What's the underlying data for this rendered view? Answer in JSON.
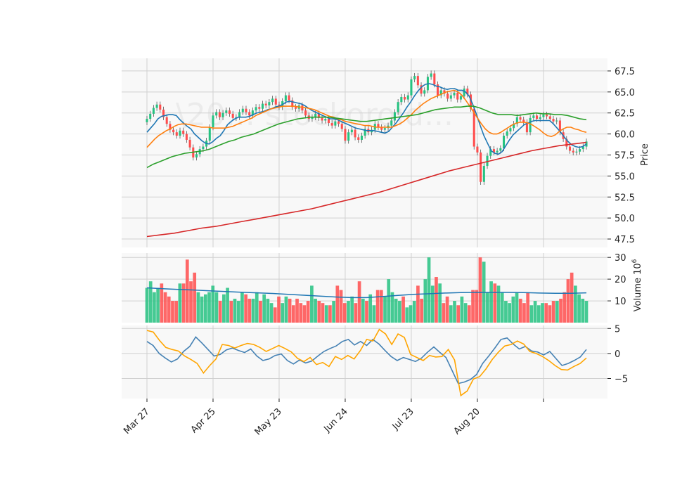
{
  "chart_data": [
    {
      "type": "candlestick",
      "panel": "price",
      "ylabel": "Price",
      "ylim": [
        46.5,
        69.0
      ],
      "yticks": [
        47.5,
        50.0,
        52.5,
        55.0,
        57.5,
        60.0,
        62.5,
        65.0,
        67.5
      ],
      "ytick_labels": [
        "47.5",
        "50.0",
        "52.5",
        "55.0",
        "57.5",
        "60.0",
        "62.5",
        "65.0",
        "67.5"
      ],
      "grid": true,
      "watermark": "\\20... stockoroid...",
      "up_color": "#26c281",
      "down_color": "#ff4d4d",
      "close": [
        61.8,
        62.4,
        63.1,
        63.5,
        62.9,
        62.0,
        61.2,
        60.5,
        60.2,
        59.8,
        60.4,
        60.0,
        59.3,
        58.4,
        57.2,
        57.6,
        58.2,
        58.5,
        59.2,
        60.8,
        62.2,
        62.6,
        62.0,
        62.5,
        62.8,
        62.4,
        61.9,
        62.0,
        62.6,
        63.0,
        62.6,
        62.2,
        62.8,
        63.2,
        63.0,
        63.6,
        63.4,
        63.8,
        64.2,
        63.5,
        63.2,
        63.9,
        64.6,
        64.0,
        63.2,
        63.0,
        63.4,
        62.8,
        62.2,
        61.8,
        62.0,
        62.4,
        61.9,
        61.6,
        61.8,
        61.3,
        61.0,
        61.5,
        61.2,
        60.6,
        59.2,
        60.2,
        60.5,
        59.6,
        59.3,
        59.8,
        60.6,
        60.2,
        60.5,
        61.2,
        60.8,
        60.5,
        60.7,
        61.0,
        61.6,
        62.6,
        63.8,
        64.4,
        64.1,
        64.6,
        66.5,
        66.9,
        65.8,
        64.8,
        65.2,
        66.8,
        67.2,
        65.9,
        64.6,
        65.2,
        64.8,
        64.2,
        64.6,
        64.9,
        64.1,
        64.5,
        65.4,
        64.7,
        63.0,
        58.5,
        57.8,
        54.3,
        56.2,
        57.4,
        58.2,
        57.8,
        58.0,
        58.3,
        59.8,
        60.3,
        60.7,
        61.2,
        62.0,
        61.7,
        61.4,
        60.2,
        61.9,
        62.2,
        61.8,
        62.0,
        62.3,
        62.1,
        61.8,
        61.5,
        61.6,
        60.2,
        59.4,
        58.5,
        58.0,
        57.8,
        57.9,
        58.2,
        58.5,
        59.1
      ]
    },
    {
      "type": "line",
      "panel": "price",
      "series": [
        {
          "color": "#1f77b4",
          "values": [
            60.2,
            60.7,
            61.2,
            61.8,
            62.1,
            62.2,
            62.3,
            62.3,
            62.2,
            61.7,
            61.3,
            60.9,
            60.6,
            60.0,
            59.6,
            59.2,
            58.9,
            58.8,
            59.1,
            59.5,
            59.8,
            60.4,
            61.1,
            61.5,
            61.8,
            62.0,
            62.0,
            62.0,
            62.1,
            62.3,
            62.5,
            62.6,
            62.7,
            62.9,
            63.0,
            63.2,
            63.3,
            63.5,
            63.8,
            63.9,
            63.8,
            63.7,
            63.6,
            63.4,
            63.1,
            62.8,
            62.6,
            62.4,
            62.2,
            62.0,
            61.8,
            61.8,
            61.7,
            61.5,
            61.3,
            61.1,
            60.9,
            60.7,
            60.6,
            60.5,
            60.4,
            60.4,
            60.4,
            60.3,
            60.2,
            60.1,
            60.3,
            60.8,
            61.3,
            61.9,
            62.5,
            63.2,
            63.8,
            64.5,
            65.1,
            65.6,
            65.9,
            66.0,
            65.9,
            65.7,
            65.6,
            65.4,
            65.3,
            65.4,
            65.4,
            65.2,
            65.2,
            65.0,
            64.5,
            63.5,
            62.3,
            61.0,
            59.8,
            58.9,
            58.0,
            57.7,
            57.6,
            57.9,
            58.6,
            59.3,
            59.9,
            60.3,
            60.7,
            61.1,
            61.3,
            61.5,
            61.6,
            61.6,
            61.6,
            61.6,
            61.6,
            61.2,
            60.7,
            60.2,
            59.6,
            59.1,
            58.7,
            58.5,
            58.4,
            58.5,
            58.8
          ]
        },
        {
          "color": "#ff7f0e",
          "values": [
            58.4,
            58.9,
            59.4,
            59.8,
            60.1,
            60.4,
            60.6,
            60.9,
            61.1,
            61.2,
            61.2,
            61.1,
            61.0,
            60.9,
            60.8,
            60.8,
            60.8,
            60.7,
            60.7,
            60.7,
            60.7,
            60.8,
            60.9,
            61.1,
            61.3,
            61.5,
            61.7,
            61.9,
            62.2,
            62.4,
            62.6,
            62.8,
            63.0,
            63.1,
            63.2,
            63.3,
            63.3,
            63.3,
            63.3,
            63.2,
            63.2,
            63.1,
            63.0,
            62.9,
            62.7,
            62.5,
            62.3,
            62.1,
            62.0,
            61.8,
            61.7,
            61.5,
            61.4,
            61.3,
            61.2,
            61.1,
            61.0,
            61.0,
            60.9,
            60.8,
            60.8,
            60.8,
            60.8,
            60.8,
            61.0,
            61.2,
            61.5,
            61.9,
            62.3,
            62.8,
            63.2,
            63.6,
            63.9,
            64.2,
            64.4,
            64.6,
            64.8,
            65.0,
            65.1,
            65.2,
            65.0,
            64.6,
            64.0,
            63.3,
            62.6,
            61.9,
            61.2,
            60.6,
            60.2,
            60.0,
            60.0,
            60.2,
            60.5,
            60.8,
            61.1,
            61.3,
            61.4,
            61.4,
            61.3,
            61.1,
            60.8,
            60.5,
            60.1,
            59.8,
            59.7,
            59.9,
            60.3,
            60.6,
            60.8,
            60.8,
            60.6,
            60.5,
            60.3,
            60.2
          ]
        },
        {
          "color": "#2ca02c",
          "values": [
            56.0,
            56.4,
            56.7,
            57.0,
            57.3,
            57.5,
            57.7,
            57.8,
            57.9,
            58.0,
            58.2,
            58.5,
            58.8,
            59.1,
            59.3,
            59.6,
            59.8,
            60.0,
            60.3,
            60.6,
            60.9,
            61.2,
            61.4,
            61.6,
            61.8,
            61.9,
            62.0,
            62.0,
            62.0,
            62.0,
            61.9,
            61.8,
            61.7,
            61.6,
            61.5,
            61.5,
            61.6,
            61.7,
            61.8,
            61.9,
            62.0,
            62.1,
            62.2,
            62.3,
            62.5,
            62.7,
            62.9,
            63.0,
            63.1,
            63.2,
            63.2,
            63.3,
            63.3,
            63.1,
            62.8,
            62.5,
            62.3,
            62.3,
            62.3,
            62.2,
            62.3,
            62.4,
            62.5,
            62.4,
            62.4,
            62.3,
            62.3,
            62.2,
            62.0,
            61.8,
            61.7
          ]
        },
        {
          "color": "#d62728",
          "values": [
            47.8,
            48.0,
            48.2,
            48.5,
            48.8,
            49.0,
            49.3,
            49.6,
            49.9,
            50.2,
            50.5,
            50.8,
            51.1,
            51.5,
            51.9,
            52.3,
            52.7,
            53.1,
            53.6,
            54.1,
            54.6,
            55.1,
            55.6,
            56.0,
            56.4,
            56.8,
            57.2,
            57.6,
            58.0,
            58.3,
            58.6,
            58.8,
            59.0
          ]
        }
      ]
    },
    {
      "type": "bar",
      "panel": "volume",
      "ylabel": "Volume  10^6",
      "ylabel_text": "Volume",
      "ylabel_exp": "6",
      "ylim": [
        0,
        32
      ],
      "yticks": [
        10,
        20,
        30
      ],
      "ytick_labels": [
        "10",
        "20",
        "30"
      ],
      "values": [
        16,
        19,
        14,
        16,
        18,
        14,
        12,
        10,
        10,
        18,
        18,
        29,
        19,
        23,
        14,
        12,
        13,
        14,
        17,
        14,
        10,
        13,
        16,
        10,
        11,
        10,
        14,
        13,
        11,
        11,
        14,
        10,
        13,
        11,
        9,
        7,
        12,
        9,
        12,
        11,
        8,
        11,
        9,
        8,
        10,
        17,
        11,
        10,
        9,
        8,
        8,
        10,
        17,
        15,
        9,
        10,
        12,
        9,
        19,
        11,
        10,
        13,
        8,
        15,
        15,
        12,
        20,
        14,
        11,
        10,
        12,
        7,
        8,
        10,
        17,
        11,
        20,
        30,
        17,
        21,
        18,
        9,
        12,
        8,
        10,
        8,
        12,
        9,
        8,
        15,
        15,
        30,
        28,
        14,
        19,
        18,
        17,
        14,
        10,
        9,
        12,
        14,
        11,
        9,
        14,
        8,
        10,
        8,
        9,
        9,
        8,
        10,
        10,
        11,
        14,
        20,
        23,
        17,
        13,
        11,
        10
      ],
      "trend_color": "#1f77b4",
      "trend": [
        16.0,
        15.6,
        15.3,
        15.0,
        14.6,
        14.3,
        14.0,
        13.7,
        13.4,
        13.0,
        12.6,
        12.2,
        11.8,
        11.5,
        11.5,
        12.0,
        12.5,
        13.0,
        13.3,
        13.6,
        13.8,
        13.9,
        13.9,
        13.9,
        13.8,
        13.6,
        13.5,
        13.5,
        13.7
      ],
      "grid": true
    },
    {
      "type": "line",
      "panel": "oscillator",
      "ylim": [
        -9.0,
        5.6
      ],
      "yticks": [
        -5,
        0,
        5
      ],
      "ytick_labels": [
        "−5",
        "0",
        "5"
      ],
      "series": [
        {
          "color": "#4682b4",
          "values": [
            2.4,
            1.6,
            0.0,
            -0.9,
            -1.7,
            -1.1,
            0.4,
            1.4,
            3.3,
            2.1,
            0.8,
            -0.5,
            -0.2,
            0.7,
            1.1,
            0.6,
            0.2,
            0.9,
            -0.5,
            -1.4,
            -1.1,
            -0.4,
            -0.1,
            -1.4,
            -2.1,
            -1.3,
            -1.9,
            -1.5,
            -0.5,
            0.4,
            1.0,
            1.5,
            2.4,
            2.8,
            1.7,
            2.4,
            1.6,
            2.8,
            1.9,
            0.6,
            -0.6,
            -1.4,
            -0.8,
            -1.2,
            -1.6,
            -0.9,
            0.3,
            1.3,
            0.2,
            -0.8,
            -3.4,
            -6.0,
            -5.7,
            -5.2,
            -4.2,
            -2.0,
            -0.5,
            1.1,
            2.8,
            3.1,
            1.9,
            0.9,
            1.4,
            0.5,
            0.3,
            -0.3,
            0.4,
            -1.0,
            -2.4,
            -2.0,
            -1.4,
            -0.7,
            0.8
          ]
        },
        {
          "color": "#ffa500",
          "values": [
            4.6,
            4.3,
            2.6,
            1.2,
            0.8,
            0.5,
            -0.5,
            -1.2,
            -2.0,
            -3.9,
            -2.4,
            -1.1,
            1.8,
            1.6,
            1.1,
            1.6,
            2.0,
            1.8,
            1.2,
            0.4,
            1.0,
            1.6,
            1.0,
            0.3,
            -1.0,
            -1.6,
            -0.8,
            -2.2,
            -1.8,
            -2.6,
            -0.6,
            -1.2,
            -0.4,
            -1.1,
            0.6,
            2.8,
            2.5,
            4.8,
            3.9,
            1.8,
            3.9,
            3.2,
            -0.2,
            -0.8,
            -1.4,
            -0.4,
            -0.7,
            -0.6,
            0.8,
            -1.3,
            -8.4,
            -7.5,
            -5.1,
            -4.6,
            -3.1,
            -1.2,
            0.3,
            1.5,
            1.8,
            2.5,
            1.9,
            0.4,
            0.0,
            -0.6,
            -1.4,
            -2.4,
            -3.2,
            -3.3,
            -2.6,
            -2.0,
            -0.9
          ]
        }
      ],
      "grid": true
    }
  ],
  "xaxis": {
    "tick_labels": [
      "Mar 27",
      "Apr 25",
      "May 23",
      "Jun 24",
      "Jul 23",
      "Aug 20",
      ""
    ],
    "tick_index": [
      0,
      20,
      40,
      60,
      80,
      100,
      120
    ]
  }
}
